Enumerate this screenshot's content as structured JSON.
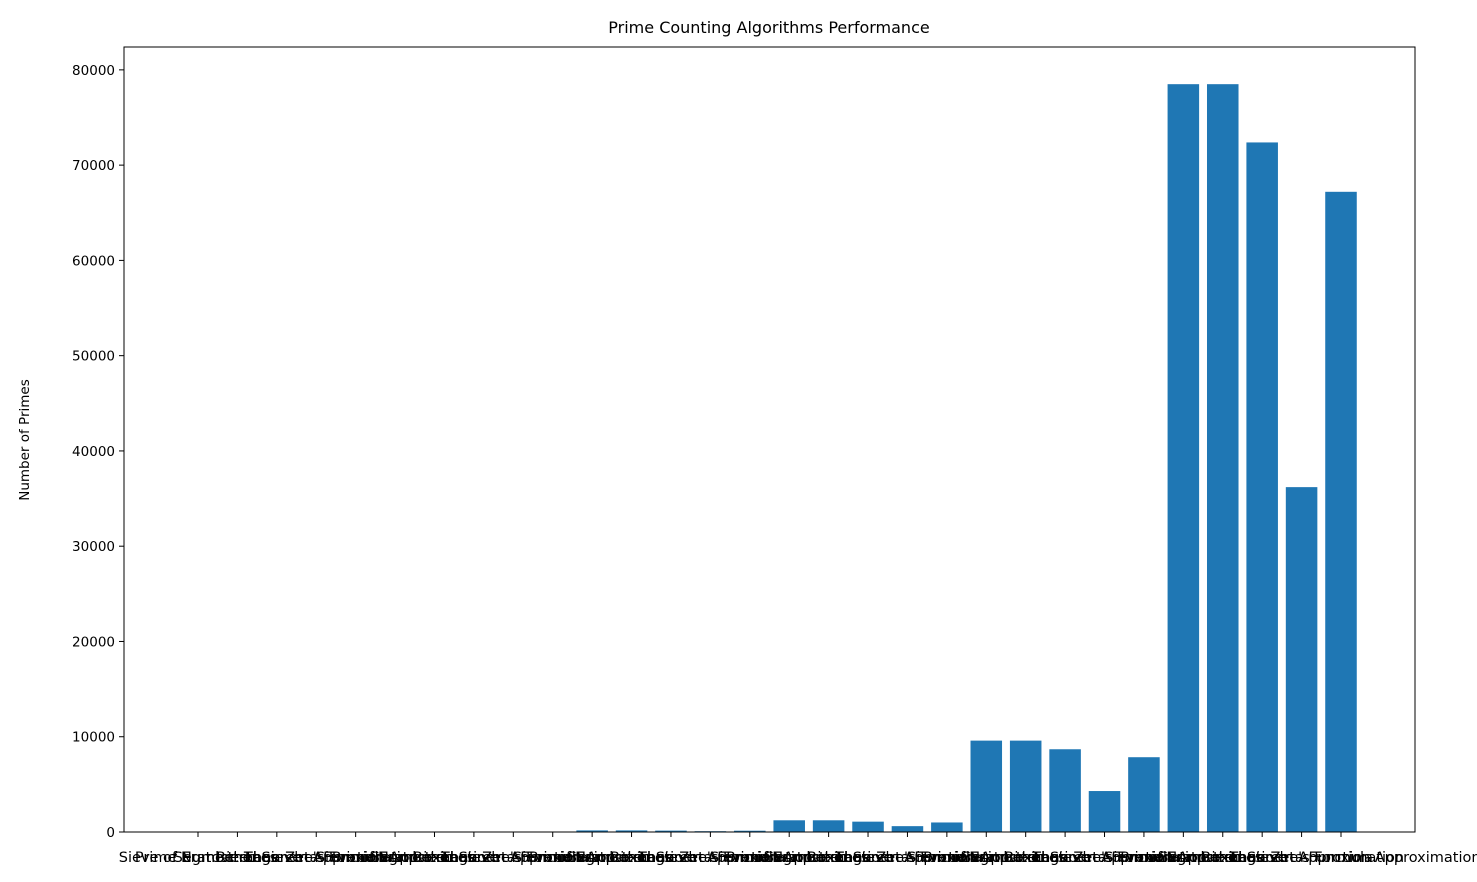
{
  "chart_data": {
    "type": "bar",
    "title": "Prime Counting Algorithms Performance",
    "y_label": "Number of Primes",
    "categories": [
      "Sieve of Eratosthenes",
      "Segmented Sieve",
      "Prime Number Theorem Approximation",
      "Legendre's Formula",
      "Riemann Zeta Function Approximation",
      "Sieve of Eratosthenes",
      "Segmented Sieve",
      "Prime Number Theorem Approximation",
      "Legendre's Formula",
      "Riemann Zeta Function Approximation",
      "Sieve of Eratosthenes",
      "Segmented Sieve",
      "Prime Number Theorem Approximation",
      "Legendre's Formula",
      "Riemann Zeta Function Approximation",
      "Sieve of Eratosthenes",
      "Segmented Sieve",
      "Prime Number Theorem Approximation",
      "Legendre's Formula",
      "Riemann Zeta Function Approximation",
      "Sieve of Eratosthenes",
      "Segmented Sieve",
      "Prime Number Theorem Approximation",
      "Legendre's Formula",
      "Riemann Zeta Function Approximation",
      "Sieve of Eratosthenes",
      "Segmented Sieve",
      "Prime Number Theorem Approximation",
      "Legendre's Formula",
      "Riemann Zeta Function Approximation"
    ],
    "values": [
      4,
      4,
      3,
      2,
      3,
      25,
      25,
      22,
      12,
      21,
      168,
      168,
      145,
      84,
      135,
      1229,
      1229,
      1086,
      614,
      1000,
      9592,
      9592,
      8686,
      4300,
      7850,
      78498,
      78498,
      72382,
      36200,
      67200
    ],
    "color": "#1f77b4",
    "ylim": [
      0,
      82400
    ],
    "yticks": [
      0,
      10000,
      20000,
      30000,
      40000,
      50000,
      60000,
      70000,
      80000
    ],
    "grid": false
  }
}
